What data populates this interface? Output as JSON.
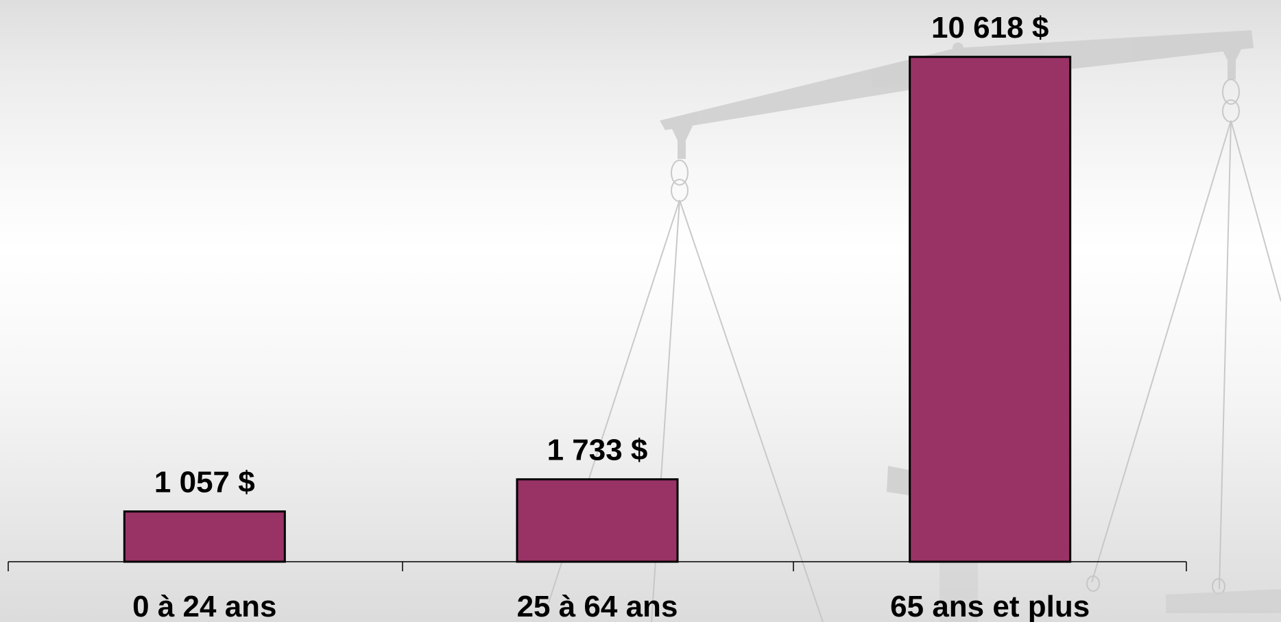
{
  "chart_data": {
    "type": "bar",
    "categories": [
      "0 à 24 ans",
      "25 à 64 ans",
      "65 ans et plus"
    ],
    "values": [
      1057,
      1733,
      10618
    ],
    "value_labels": [
      "1 057 $",
      "1 733 $",
      "10 618 $"
    ],
    "ylim": [
      0,
      10618
    ],
    "grid": false,
    "legend": "none",
    "bar_color": "#993366",
    "background_decoration": "balance-scale"
  }
}
